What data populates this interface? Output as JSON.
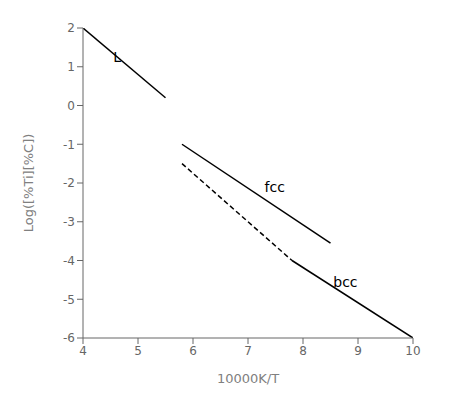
{
  "chart_data": {
    "type": "line",
    "title": "",
    "xlabel": "10000K/T",
    "ylabel": "Log([%Ti][%C])",
    "xlim": [
      4,
      10
    ],
    "ylim": [
      -6,
      2
    ],
    "xticks": [
      4,
      5,
      6,
      7,
      8,
      9,
      10
    ],
    "yticks": [
      -6,
      -5,
      -4,
      -3,
      -2,
      -1,
      0,
      1,
      2
    ],
    "grid": false,
    "series": [
      {
        "color": "#000000",
        "line_style": "solid",
        "x": [
          4.0,
          5.5
        ],
        "values": [
          2.0,
          0.2
        ]
      },
      {
        "color": "#000000",
        "line_style": "solid",
        "x": [
          5.8,
          8.5
        ],
        "values": [
          -1.0,
          -3.55
        ]
      },
      {
        "color": "#000000",
        "line_style": "dashed",
        "x": [
          5.8,
          7.8
        ],
        "values": [
          -1.5,
          -4.0
        ]
      },
      {
        "color": "#000000",
        "line_style": "solid",
        "x": [
          7.8,
          10.0
        ],
        "values": [
          -4.0,
          -6.0
        ]
      }
    ],
    "annotations": [
      {
        "text": "L",
        "x": 4.55,
        "y": 1.25
      },
      {
        "text": "fcc",
        "x": 7.3,
        "y": -2.1
      },
      {
        "text": "bcc",
        "x": 8.55,
        "y": -4.55
      }
    ]
  }
}
